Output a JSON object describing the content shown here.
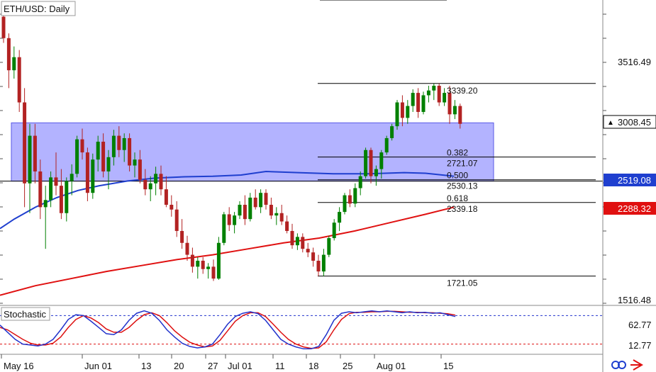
{
  "colors": {
    "bull_candle": "#008000",
    "bear_candle": "#b22222",
    "zone_fill": "#b3b3ff",
    "zone_border": "#5a5ae6",
    "ma_blue": "#1f3fcf",
    "ma_red": "#e01010",
    "stoch_k": "#2233cc",
    "stoch_d": "#dd1111",
    "stoch_upper_dash": "#2233cc",
    "stoch_lower_dash": "#dd1111",
    "tag_current_bg": "#ffffff",
    "tag_blue_bg": "#1f3fcf",
    "tag_red_bg": "#e01010"
  },
  "chart_data": [
    {
      "type": "candlestick",
      "title": "ETH/USD: Daily",
      "x_tick_labels": [
        "May 16",
        "Jun 01",
        "13",
        "20",
        "27",
        "Jul 01",
        "11",
        "18",
        "25",
        "Aug 01",
        "15"
      ],
      "y_tick_labels": [
        "3516.49",
        "1516.48"
      ],
      "ylim": [
        1400,
        4000
      ],
      "grid": false,
      "price_tags": [
        {
          "value": 3008.45,
          "label": "3008.45",
          "style": "current"
        },
        {
          "value": 2519.08,
          "label": "2519.08",
          "style": "blue"
        },
        {
          "value": 2288.32,
          "label": "2288.32",
          "style": "red"
        }
      ],
      "support_zone": {
        "low": 2519.08,
        "high": 3008.45
      },
      "fibonacci": {
        "high": {
          "value": 3339.2,
          "label": "3339.20"
        },
        "low": {
          "value": 1721.05,
          "label": "1721.05"
        },
        "levels": [
          {
            "ratio": "0.382",
            "value": 2721.07,
            "label": "2721.07"
          },
          {
            "ratio": "0.500",
            "value": 2530.13,
            "label": "2530.13"
          },
          {
            "ratio": "0.618",
            "value": 2339.18,
            "label": "2339.18"
          }
        ]
      },
      "candles": [
        [
          3900,
          3990,
          3680,
          3720
        ],
        [
          3720,
          3760,
          3300,
          3450
        ],
        [
          3450,
          3650,
          3380,
          3560
        ],
        [
          3560,
          3620,
          3100,
          3180
        ],
        [
          3180,
          3300,
          2300,
          2500
        ],
        [
          2500,
          3000,
          2250,
          2900
        ],
        [
          2900,
          3000,
          2500,
          2600
        ],
        [
          2600,
          2700,
          2200,
          2300
        ],
        [
          2300,
          2480,
          1950,
          2360
        ],
        [
          2360,
          2600,
          2300,
          2550
        ],
        [
          2550,
          2760,
          2400,
          2480
        ],
        [
          2480,
          2620,
          2200,
          2250
        ],
        [
          2250,
          2550,
          2180,
          2520
        ],
        [
          2520,
          2660,
          2400,
          2580
        ],
        [
          2580,
          2900,
          2550,
          2870
        ],
        [
          2870,
          2960,
          2700,
          2760
        ],
        [
          2760,
          2800,
          2350,
          2420
        ],
        [
          2420,
          2750,
          2370,
          2700
        ],
        [
          2700,
          2900,
          2600,
          2850
        ],
        [
          2850,
          2920,
          2550,
          2600
        ],
        [
          2600,
          2780,
          2450,
          2720
        ],
        [
          2720,
          2950,
          2650,
          2900
        ],
        [
          2900,
          2980,
          2720,
          2780
        ],
        [
          2780,
          2920,
          2680,
          2880
        ],
        [
          2880,
          2920,
          2600,
          2650
        ],
        [
          2650,
          2760,
          2550,
          2700
        ],
        [
          2700,
          2780,
          2500,
          2530
        ],
        [
          2530,
          2620,
          2400,
          2450
        ],
        [
          2450,
          2560,
          2350,
          2500
        ],
        [
          2500,
          2640,
          2400,
          2580
        ],
        [
          2580,
          2650,
          2400,
          2450
        ],
        [
          2450,
          2560,
          2300,
          2320
        ],
        [
          2320,
          2400,
          2220,
          2280
        ],
        [
          2280,
          2350,
          2050,
          2100
        ],
        [
          2100,
          2200,
          1950,
          2000
        ],
        [
          2000,
          2060,
          1850,
          1900
        ],
        [
          1900,
          1960,
          1750,
          1800
        ],
        [
          1800,
          1880,
          1700,
          1850
        ],
        [
          1850,
          1880,
          1740,
          1780
        ],
        [
          1780,
          1830,
          1700,
          1800
        ],
        [
          1800,
          1860,
          1680,
          1700
        ],
        [
          1700,
          2050,
          1690,
          2000
        ],
        [
          2000,
          2260,
          1980,
          2240
        ],
        [
          2240,
          2300,
          2100,
          2150
        ],
        [
          2150,
          2260,
          2080,
          2230
        ],
        [
          2230,
          2350,
          2200,
          2320
        ],
        [
          2320,
          2400,
          2150,
          2200
        ],
        [
          2200,
          2420,
          2180,
          2380
        ],
        [
          2380,
          2450,
          2280,
          2300
        ],
        [
          2300,
          2450,
          2250,
          2420
        ],
        [
          2420,
          2450,
          2280,
          2320
        ],
        [
          2320,
          2380,
          2200,
          2230
        ],
        [
          2230,
          2300,
          2150,
          2250
        ],
        [
          2250,
          2320,
          2150,
          2180
        ],
        [
          2180,
          2230,
          2080,
          2100
        ],
        [
          2100,
          2160,
          1950,
          1980
        ],
        [
          1980,
          2080,
          1940,
          2050
        ],
        [
          2050,
          2080,
          1920,
          1950
        ],
        [
          1950,
          2000,
          1880,
          1920
        ],
        [
          1920,
          1960,
          1800,
          1850
        ],
        [
          1850,
          1900,
          1720,
          1760
        ],
        [
          1760,
          1950,
          1720,
          1900
        ],
        [
          1900,
          2060,
          1880,
          2040
        ],
        [
          2040,
          2200,
          2020,
          2170
        ],
        [
          2170,
          2300,
          2100,
          2260
        ],
        [
          2260,
          2420,
          2240,
          2400
        ],
        [
          2400,
          2450,
          2300,
          2330
        ],
        [
          2330,
          2500,
          2300,
          2460
        ],
        [
          2460,
          2600,
          2400,
          2560
        ],
        [
          2560,
          2800,
          2540,
          2780
        ],
        [
          2780,
          2800,
          2500,
          2560
        ],
        [
          2560,
          2650,
          2480,
          2620
        ],
        [
          2620,
          2780,
          2540,
          2760
        ],
        [
          2760,
          2900,
          2740,
          2880
        ],
        [
          2880,
          3000,
          2860,
          2980
        ],
        [
          2980,
          3200,
          2950,
          3180
        ],
        [
          3180,
          3240,
          2980,
          3050
        ],
        [
          3050,
          3200,
          3000,
          3150
        ],
        [
          3150,
          3290,
          3100,
          3260
        ],
        [
          3260,
          3300,
          3050,
          3100
        ],
        [
          3100,
          3270,
          3080,
          3240
        ],
        [
          3240,
          3320,
          3180,
          3280
        ],
        [
          3280,
          3339,
          3200,
          3320
        ],
        [
          3320,
          3339,
          3150,
          3180
        ],
        [
          3180,
          3300,
          3150,
          3260
        ],
        [
          3260,
          3320,
          3000,
          3080
        ],
        [
          3080,
          3200,
          3040,
          3150
        ],
        [
          3150,
          3170,
          2960,
          3000
        ]
      ],
      "ma_blue": [
        [
          0,
          2120
        ],
        [
          20,
          2200
        ],
        [
          50,
          2300
        ],
        [
          80,
          2380
        ],
        [
          110,
          2440
        ],
        [
          140,
          2480
        ],
        [
          180,
          2520
        ],
        [
          220,
          2545
        ],
        [
          260,
          2555
        ],
        [
          300,
          2560
        ],
        [
          340,
          2570
        ],
        [
          375,
          2600
        ],
        [
          420,
          2590
        ],
        [
          470,
          2580
        ],
        [
          520,
          2580
        ],
        [
          570,
          2590
        ],
        [
          600,
          2585
        ],
        [
          640,
          2560
        ]
      ],
      "ma_red": [
        [
          0,
          1560
        ],
        [
          50,
          1640
        ],
        [
          100,
          1700
        ],
        [
          150,
          1760
        ],
        [
          200,
          1810
        ],
        [
          250,
          1860
        ],
        [
          300,
          1900
        ],
        [
          350,
          1950
        ],
        [
          400,
          2000
        ],
        [
          450,
          2040
        ],
        [
          500,
          2100
        ],
        [
          550,
          2170
        ],
        [
          600,
          2240
        ],
        [
          640,
          2300
        ]
      ]
    },
    {
      "type": "line",
      "title": "Stochastic",
      "y_tick_labels": [
        "62.77",
        "12.77"
      ],
      "levels": [
        80,
        20
      ],
      "series": [
        {
          "key": "k",
          "values": [
            60,
            45,
            30,
            20,
            18,
            16,
            20,
            30,
            50,
            72,
            82,
            80,
            68,
            55,
            42,
            40,
            50,
            70,
            85,
            90,
            85,
            70,
            50,
            35,
            22,
            15,
            12,
            14,
            20,
            40,
            62,
            78,
            85,
            88,
            84,
            70,
            50,
            30,
            20,
            14,
            10,
            10,
            15,
            40,
            70,
            85,
            88,
            86,
            88,
            90,
            88,
            90,
            88,
            86,
            88,
            86,
            87,
            85,
            86,
            82,
            78
          ]
        },
        {
          "key": "d",
          "values": [
            55,
            50,
            40,
            30,
            22,
            18,
            18,
            22,
            35,
            55,
            72,
            80,
            75,
            65,
            52,
            45,
            45,
            55,
            70,
            82,
            86,
            80,
            65,
            48,
            35,
            24,
            18,
            14,
            16,
            28,
            48,
            68,
            80,
            86,
            86,
            78,
            62,
            45,
            30,
            20,
            14,
            11,
            12,
            25,
            50,
            72,
            84,
            87,
            87,
            88,
            88,
            89,
            89,
            88,
            87,
            87,
            86,
            86,
            85,
            84,
            81
          ]
        }
      ]
    }
  ]
}
